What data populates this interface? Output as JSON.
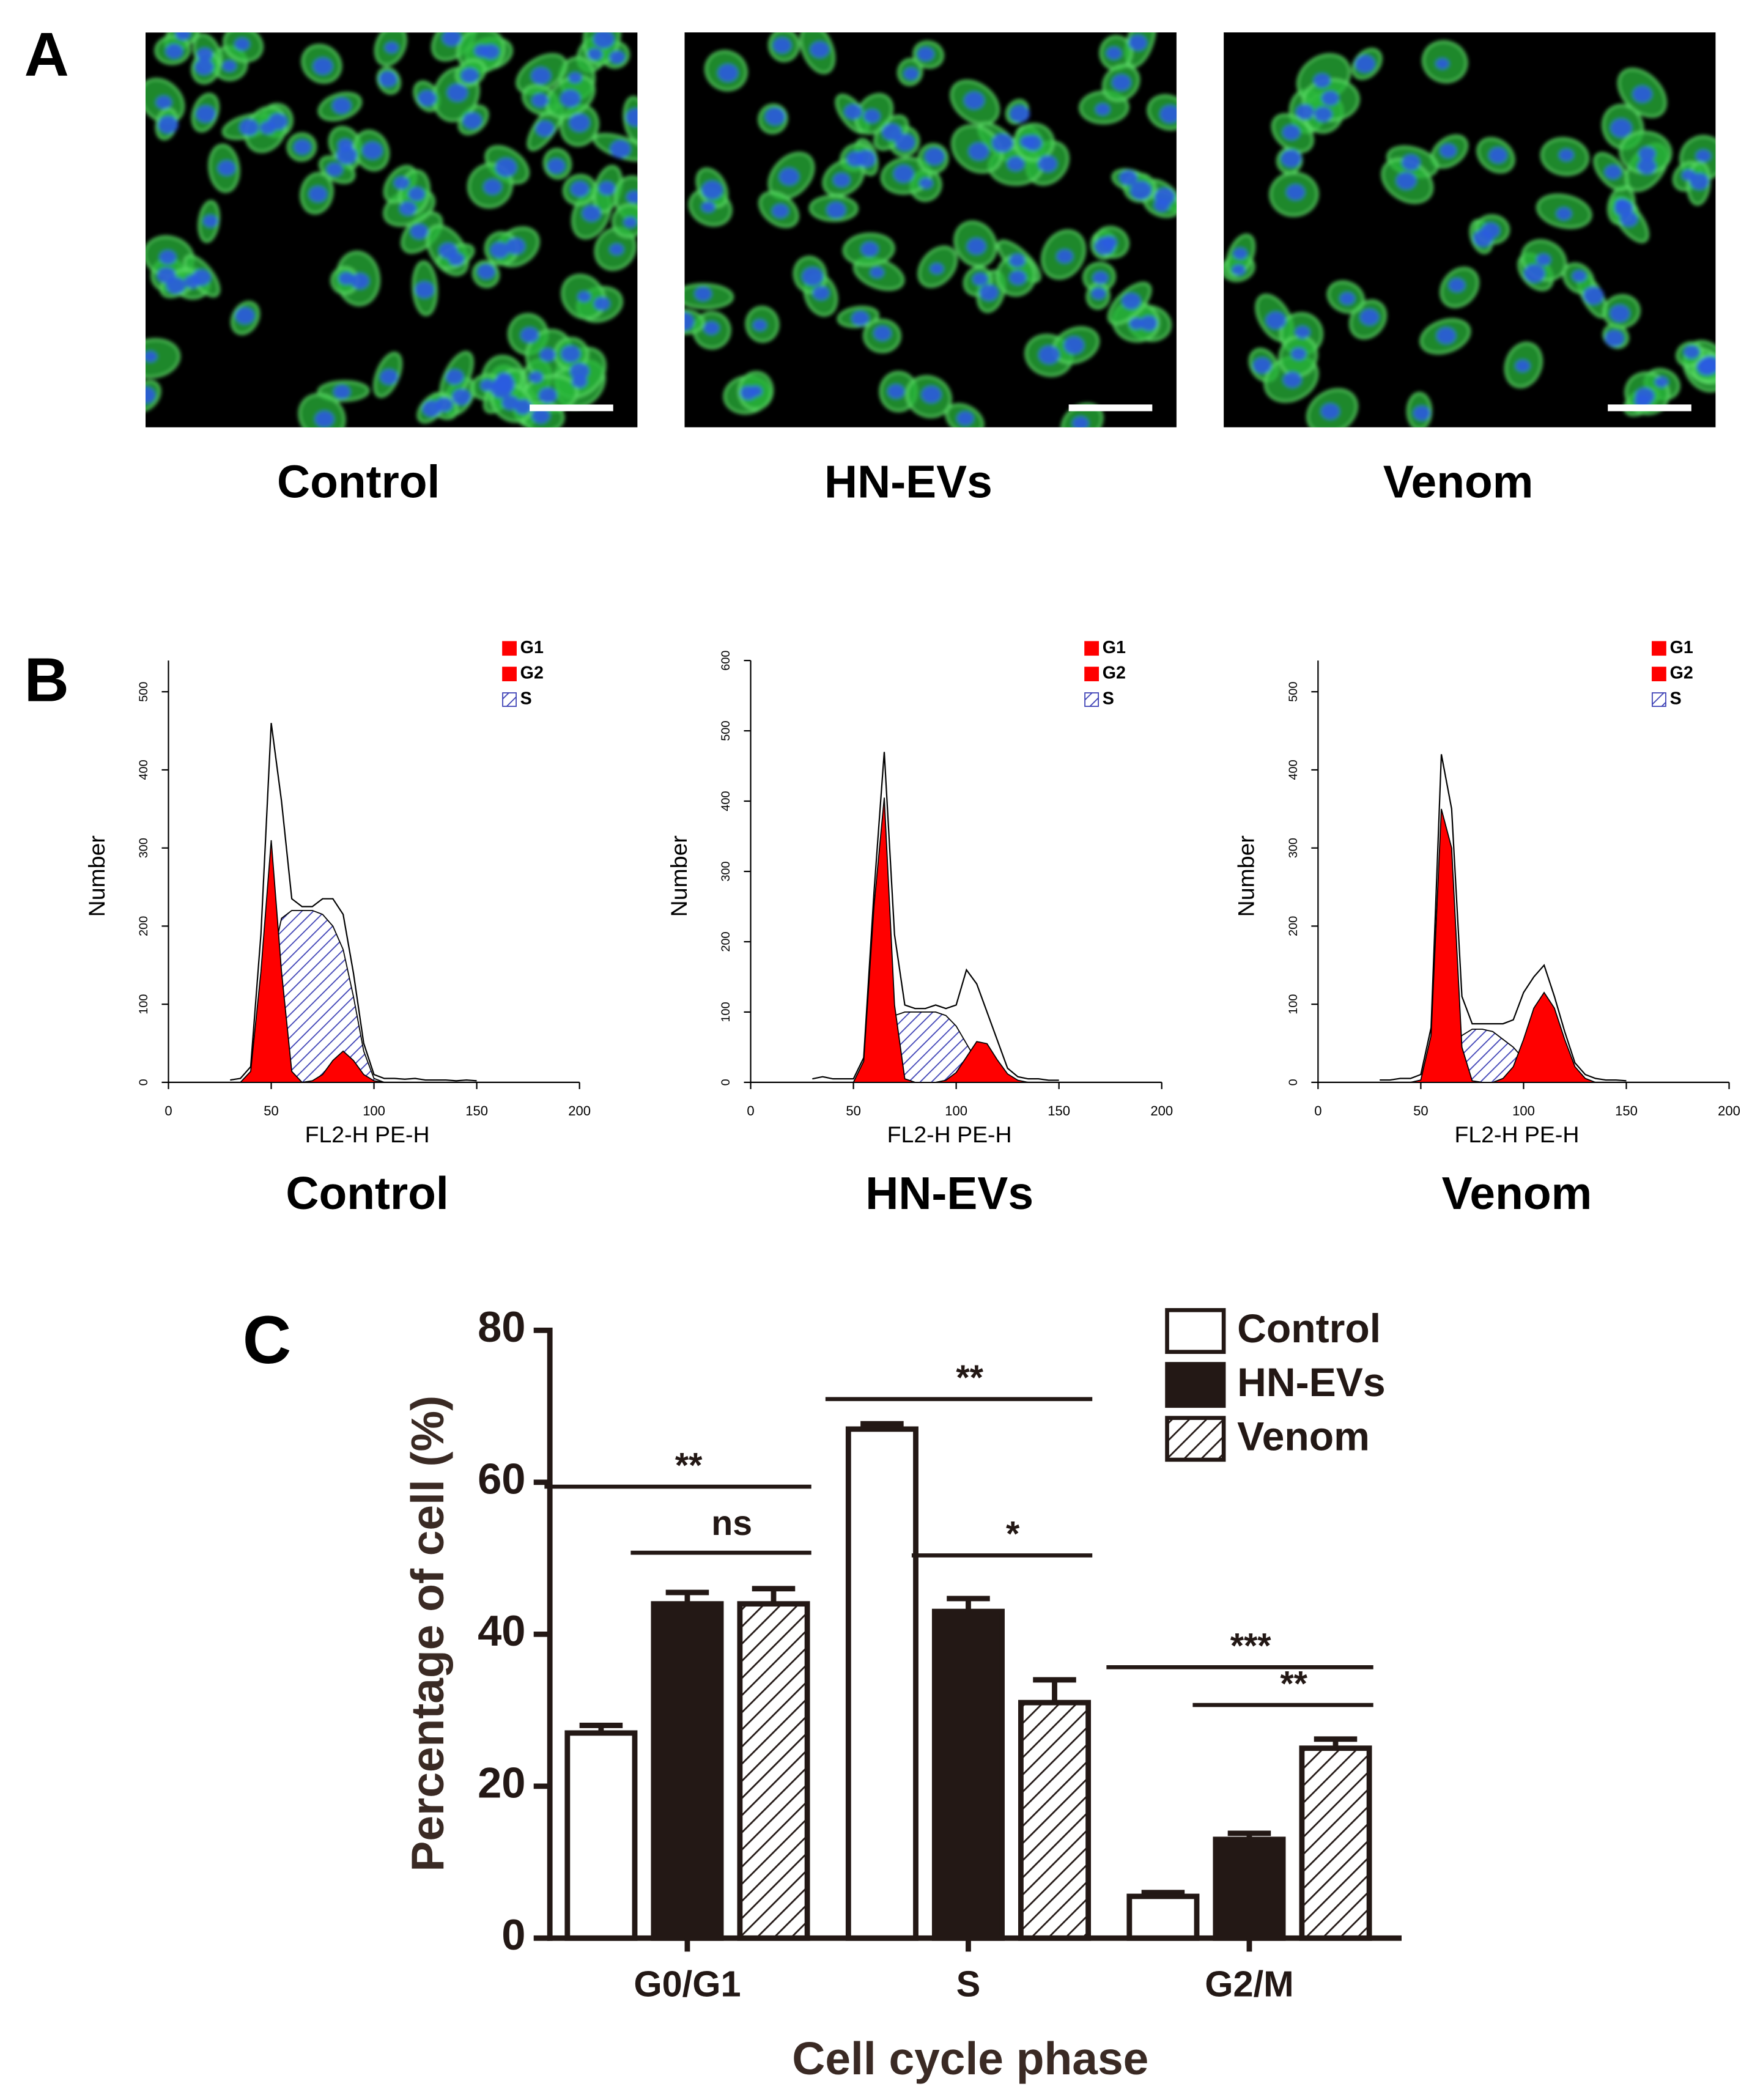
{
  "panel_labels": [
    "A",
    "B",
    "C"
  ],
  "micrographs": {
    "captions": [
      "Control",
      "HN-EVs",
      "Venom"
    ]
  },
  "chart_data": [
    {
      "type": "area",
      "title": "Control",
      "xlabel": "FL2-H PE-H",
      "ylabel": "Number",
      "x": [
        30,
        35,
        40,
        45,
        50,
        55,
        60,
        65,
        70,
        75,
        80,
        85,
        90,
        95,
        100,
        105,
        110,
        115,
        120,
        125,
        130,
        135,
        140,
        145,
        150
      ],
      "xlim": [
        0,
        200
      ],
      "xticks": [
        0,
        50,
        100,
        150,
        200
      ],
      "ylim": [
        0,
        540
      ],
      "yticks": [
        0,
        100,
        200,
        300,
        400,
        500
      ],
      "legend": "top-right",
      "series": [
        {
          "name": "G1",
          "color": "#ff0000",
          "values": [
            0,
            0,
            14,
            142,
            310,
            142,
            14,
            0,
            0,
            0,
            0,
            0,
            0,
            0,
            0,
            0,
            0,
            0,
            0,
            0,
            0,
            0,
            0,
            0,
            0
          ]
        },
        {
          "name": "G2",
          "color": "#ff0000",
          "values": [
            0,
            0,
            0,
            0,
            0,
            0,
            0,
            0,
            2,
            10,
            28,
            40,
            28,
            10,
            2,
            0,
            0,
            0,
            0,
            0,
            0,
            0,
            0,
            0,
            0
          ]
        },
        {
          "name": "S",
          "color": "#3b3fb5",
          "hatch": true,
          "values": [
            0,
            0,
            0,
            40,
            150,
            210,
            220,
            220,
            220,
            215,
            200,
            170,
            110,
            40,
            5,
            0,
            0,
            0,
            0,
            0,
            0,
            0,
            0,
            0,
            0
          ]
        }
      ],
      "total": {
        "color": "#000000",
        "values": [
          3,
          5,
          20,
          190,
          460,
          360,
          235,
          225,
          225,
          235,
          235,
          215,
          140,
          50,
          10,
          5,
          5,
          4,
          5,
          3,
          3,
          3,
          2,
          3,
          2
        ]
      }
    },
    {
      "type": "area",
      "title": "HN-EVs",
      "xlabel": "FL2-H PE-H",
      "ylabel": "Number",
      "x": [
        30,
        35,
        40,
        45,
        50,
        55,
        60,
        65,
        70,
        75,
        80,
        85,
        90,
        95,
        100,
        105,
        110,
        115,
        120,
        125,
        130,
        135,
        140,
        145,
        150
      ],
      "xlim": [
        0,
        200
      ],
      "xticks": [
        0,
        50,
        100,
        150,
        200
      ],
      "ylim": [
        0,
        600
      ],
      "yticks": [
        0,
        100,
        200,
        300,
        400,
        500,
        600
      ],
      "legend": "top-right",
      "series": [
        {
          "name": "G1",
          "color": "#ff0000",
          "values": [
            0,
            0,
            0,
            0,
            0,
            30,
            250,
            405,
            110,
            5,
            0,
            0,
            0,
            0,
            0,
            0,
            0,
            0,
            0,
            0,
            0,
            0,
            0,
            0,
            0
          ]
        },
        {
          "name": "G2",
          "color": "#ff0000",
          "values": [
            0,
            0,
            0,
            0,
            0,
            0,
            0,
            0,
            0,
            0,
            0,
            0,
            0,
            3,
            14,
            36,
            58,
            55,
            32,
            12,
            3,
            0,
            0,
            0,
            0
          ]
        },
        {
          "name": "S",
          "color": "#3b3fb5",
          "hatch": true,
          "values": [
            0,
            0,
            0,
            0,
            0,
            0,
            0,
            60,
            95,
            100,
            100,
            100,
            100,
            95,
            80,
            55,
            30,
            10,
            2,
            0,
            0,
            0,
            0,
            0,
            0
          ]
        }
      ],
      "total": {
        "color": "#000000",
        "values": [
          5,
          8,
          5,
          5,
          5,
          35,
          270,
          470,
          210,
          110,
          105,
          105,
          110,
          105,
          110,
          160,
          140,
          100,
          60,
          20,
          8,
          5,
          5,
          3,
          3
        ]
      }
    },
    {
      "type": "area",
      "title": "Venom",
      "xlabel": "FL2-H PE-H",
      "ylabel": "Number",
      "x": [
        30,
        35,
        40,
        45,
        50,
        55,
        60,
        65,
        70,
        75,
        80,
        85,
        90,
        95,
        100,
        105,
        110,
        115,
        120,
        125,
        130,
        135,
        140,
        145,
        150
      ],
      "xlim": [
        0,
        200
      ],
      "xticks": [
        0,
        50,
        100,
        150,
        200
      ],
      "ylim": [
        0,
        540
      ],
      "yticks": [
        0,
        100,
        200,
        300,
        400,
        500
      ],
      "legend": "top-right",
      "series": [
        {
          "name": "G1",
          "color": "#ff0000",
          "values": [
            0,
            0,
            0,
            0,
            3,
            60,
            350,
            300,
            45,
            2,
            0,
            0,
            0,
            0,
            0,
            0,
            0,
            0,
            0,
            0,
            0,
            0,
            0,
            0,
            0
          ]
        },
        {
          "name": "G2",
          "color": "#ff0000",
          "values": [
            0,
            0,
            0,
            0,
            0,
            0,
            0,
            0,
            0,
            0,
            0,
            0,
            5,
            20,
            55,
            95,
            115,
            95,
            55,
            20,
            5,
            0,
            0,
            0,
            0
          ]
        },
        {
          "name": "S",
          "color": "#3b3fb5",
          "hatch": true,
          "values": [
            0,
            0,
            0,
            0,
            0,
            0,
            0,
            40,
            60,
            68,
            68,
            65,
            55,
            45,
            30,
            15,
            5,
            0,
            0,
            0,
            0,
            0,
            0,
            0,
            0
          ]
        }
      ],
      "total": {
        "color": "#000000",
        "values": [
          3,
          3,
          5,
          5,
          10,
          70,
          420,
          350,
          110,
          75,
          75,
          75,
          75,
          80,
          115,
          135,
          150,
          110,
          65,
          25,
          10,
          5,
          3,
          3,
          2
        ]
      }
    },
    {
      "type": "bar",
      "xlabel": "Cell cycle phase",
      "ylabel": "Percentage of cell (%)",
      "categories": [
        "G0/G1",
        "S",
        "G2/M"
      ],
      "ylim": [
        0,
        80
      ],
      "yticks": [
        0,
        20,
        40,
        60,
        80
      ],
      "legend": "top-right",
      "series": [
        {
          "name": "Control",
          "color": "#ffffff",
          "values": [
            27,
            67,
            5.5
          ],
          "errors": [
            1,
            0.7,
            0.5
          ]
        },
        {
          "name": "HN-EVs",
          "color": "#231815",
          "values": [
            44,
            43,
            13
          ],
          "errors": [
            1.5,
            1.7,
            0.8
          ]
        },
        {
          "name": "Venom",
          "color": "#ffffff",
          "hatch": true,
          "values": [
            44,
            31,
            25
          ],
          "errors": [
            2,
            3,
            1.2
          ]
        }
      ],
      "annotations": [
        "**",
        "ns",
        "**",
        "*",
        "***",
        "**"
      ]
    }
  ]
}
